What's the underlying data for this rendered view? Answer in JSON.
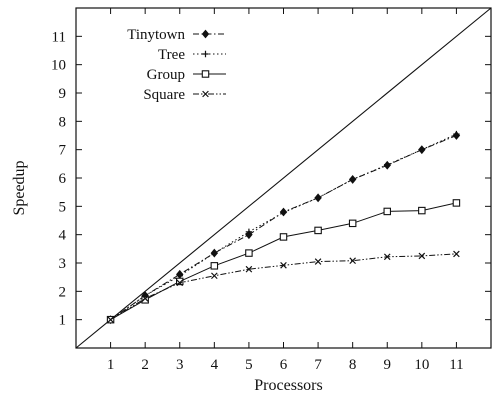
{
  "chart_data": {
    "type": "line",
    "xlabel": "Processors",
    "ylabel": "Speedup",
    "xlim": [
      0,
      12
    ],
    "ylim": [
      0,
      12
    ],
    "x_ticks": [
      1,
      2,
      3,
      4,
      5,
      6,
      7,
      8,
      9,
      10,
      11
    ],
    "y_ticks": [
      1,
      2,
      3,
      4,
      5,
      6,
      7,
      8,
      9,
      10,
      11
    ],
    "grid": false,
    "legend_position": "top-left",
    "reference_line": {
      "x": [
        0,
        12
      ],
      "y": [
        0,
        12
      ]
    },
    "series": [
      {
        "name": "Tinytown",
        "marker": "diamond",
        "line_style": "dash-dot",
        "x": [
          1,
          2,
          3,
          4,
          5,
          6,
          7,
          8,
          9,
          10,
          11
        ],
        "y": [
          1.0,
          1.85,
          2.6,
          3.35,
          4.0,
          4.8,
          5.3,
          5.95,
          6.45,
          7.0,
          7.5
        ]
      },
      {
        "name": "Tree",
        "marker": "plus",
        "line_style": "dotted",
        "x": [
          1,
          2,
          3,
          4,
          5,
          6,
          7,
          8,
          9,
          10,
          11
        ],
        "y": [
          1.0,
          1.85,
          2.55,
          3.35,
          4.1,
          4.78,
          5.3,
          5.95,
          6.47,
          7.0,
          7.55
        ]
      },
      {
        "name": "Group",
        "marker": "square",
        "line_style": "solid",
        "x": [
          1,
          2,
          3,
          4,
          5,
          6,
          7,
          8,
          9,
          10,
          11
        ],
        "y": [
          1.0,
          1.7,
          2.35,
          2.9,
          3.35,
          3.92,
          4.15,
          4.4,
          4.82,
          4.85,
          5.12
        ]
      },
      {
        "name": "Square",
        "marker": "x",
        "line_style": "dash-dot-dot",
        "x": [
          1,
          2,
          3,
          4,
          5,
          6,
          7,
          8,
          9,
          10,
          11
        ],
        "y": [
          1.0,
          1.75,
          2.3,
          2.55,
          2.78,
          2.92,
          3.05,
          3.08,
          3.22,
          3.25,
          3.32
        ]
      }
    ]
  }
}
